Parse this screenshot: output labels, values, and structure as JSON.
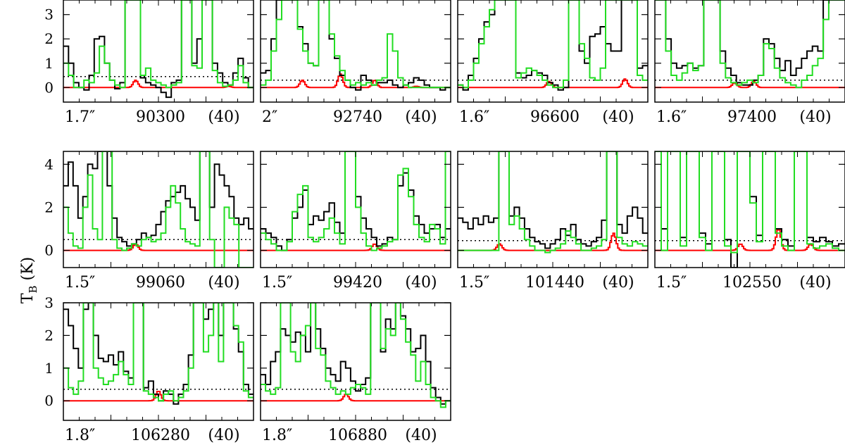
{
  "chart_data": {
    "type": "line",
    "ylabel": "T",
    "ylabel_sub": "B",
    "ylabel_unit": " (K)",
    "colors": {
      "observed": "#000000",
      "model_total": "#22dd22",
      "model_species": "#ff0000",
      "threshold": "#000000"
    },
    "panels": [
      {
        "res": "1.7″",
        "freq": "90300",
        "note": "(40)",
        "ylim": [
          -0.6,
          3.6
        ],
        "yticks": [
          0,
          1,
          2,
          3
        ],
        "threshold": 0.45,
        "red_peaks": [
          [
            0.38,
            0.3
          ],
          [
            0.87,
            0.05
          ]
        ],
        "black": [
          1.7,
          1.0,
          0.2,
          0.0,
          -0.1,
          0.5,
          2.0,
          2.1,
          1.0,
          0.3,
          -0.05,
          0.2,
          3.6,
          3.6,
          3.6,
          0.4,
          0.2,
          0.1,
          0.0,
          -0.2,
          -0.4,
          0.2,
          0.3,
          3.6,
          3.6,
          1.0,
          2.0,
          3.6,
          3.6,
          1.0,
          0.6,
          0.2,
          0.1,
          0.6,
          1.2,
          0.4,
          0.0
        ],
        "green": [
          1.0,
          0.5,
          0.0,
          0.0,
          0.3,
          0.2,
          0.6,
          1.7,
          1.0,
          0.3,
          0.1,
          0.0,
          3.6,
          3.6,
          3.6,
          0.5,
          0.8,
          0.3,
          0.2,
          0.1,
          0.0,
          0.1,
          0.2,
          3.6,
          3.6,
          0.9,
          0.8,
          3.6,
          3.6,
          0.7,
          0.2,
          0.05,
          0.1,
          0.3,
          0.9,
          0.2,
          0.0
        ]
      },
      {
        "res": "2″",
        "freq": "92740",
        "note": "(40)",
        "ylim": [
          -0.6,
          3.6
        ],
        "yticks": [
          0,
          1,
          2,
          3
        ],
        "threshold": 0.3,
        "red_peaks": [
          [
            0.22,
            0.3
          ],
          [
            0.42,
            0.55
          ],
          [
            0.6,
            0.3
          ],
          [
            0.82,
            0.05
          ]
        ],
        "black": [
          0.6,
          0.7,
          2.0,
          3.6,
          3.6,
          3.6,
          3.6,
          2.5,
          1.8,
          1.0,
          0.9,
          3.6,
          3.6,
          2.0,
          1.2,
          0.5,
          0.3,
          0.0,
          -0.1,
          0.5,
          0.3,
          0.1,
          0.2,
          0.2,
          0.3,
          0.1,
          0.0,
          0.1,
          0.2,
          0.4,
          0.3,
          0.1,
          0.0,
          0.0,
          -0.1,
          0.0
        ],
        "green": [
          0.1,
          0.3,
          1.5,
          2.8,
          3.6,
          3.6,
          3.6,
          2.4,
          1.5,
          1.0,
          0.9,
          3.6,
          3.6,
          2.2,
          1.3,
          0.7,
          0.3,
          0.1,
          0.2,
          0.1,
          0.2,
          0.1,
          0.3,
          0.4,
          2.2,
          1.5,
          0.4,
          0.1,
          0.0,
          0.0,
          0.0,
          0.0,
          0.0,
          0.0,
          0.0,
          0.0
        ]
      },
      {
        "res": "1.6″",
        "freq": "96600",
        "note": "(40)",
        "ylim": [
          -0.6,
          3.6
        ],
        "yticks": [
          0,
          1,
          2,
          3
        ],
        "threshold": 0.3,
        "red_peaks": [
          [
            0.48,
            0.25
          ],
          [
            0.88,
            0.35
          ]
        ],
        "black": [
          0.1,
          -0.1,
          0.5,
          1.2,
          2.0,
          2.7,
          3.0,
          3.6,
          3.6,
          3.6,
          3.6,
          0.6,
          0.4,
          0.5,
          0.7,
          0.6,
          0.5,
          0.2,
          0.1,
          -0.1,
          0.0,
          3.6,
          3.6,
          1.5,
          1.0,
          2.1,
          2.2,
          2.5,
          1.8,
          1.5,
          1.5,
          3.6,
          3.6,
          3.6,
          0.8,
          0.9
        ],
        "green": [
          0.1,
          0.0,
          0.3,
          1.0,
          1.8,
          2.5,
          3.2,
          3.6,
          3.6,
          3.6,
          3.6,
          0.4,
          0.6,
          0.8,
          0.7,
          0.5,
          0.3,
          0.1,
          0.0,
          0.0,
          0.3,
          3.6,
          3.6,
          1.8,
          1.2,
          0.4,
          0.3,
          0.8,
          3.6,
          3.6,
          3.6,
          3.6,
          3.6,
          3.6,
          0.5,
          0.3
        ]
      },
      {
        "res": "1.6″",
        "freq": "97400",
        "note": "(40)",
        "ylim": [
          -0.6,
          3.6
        ],
        "yticks": [
          0,
          1,
          2,
          3
        ],
        "threshold": 0.3,
        "red_peaks": [
          [
            0.42,
            0.2
          ],
          [
            0.52,
            0.25
          ]
        ],
        "black": [
          3.6,
          3.6,
          2.0,
          1.0,
          0.8,
          0.9,
          1.0,
          0.8,
          0.9,
          3.6,
          3.6,
          3.6,
          1.5,
          0.8,
          0.5,
          0.2,
          0.1,
          0.1,
          0.3,
          0.5,
          2.0,
          1.8,
          1.2,
          0.7,
          1.1,
          0.5,
          0.8,
          1.2,
          1.5,
          1.7,
          1.5,
          3.6,
          3.6,
          3.6,
          3.6
        ],
        "green": [
          3.6,
          3.6,
          1.5,
          0.5,
          0.3,
          0.6,
          1.0,
          0.7,
          0.9,
          3.6,
          3.6,
          3.6,
          1.0,
          0.4,
          0.2,
          0.1,
          0.2,
          0.3,
          0.2,
          0.5,
          1.8,
          1.6,
          0.8,
          0.4,
          0.2,
          0.1,
          0.0,
          0.3,
          0.5,
          0.9,
          1.2,
          2.8,
          3.6,
          3.6,
          3.6
        ]
      },
      {
        "res": "1.5″",
        "freq": "99060",
        "note": "(40)",
        "ylim": [
          -0.8,
          4.6
        ],
        "yticks": [
          0,
          2,
          4
        ],
        "threshold": 0.5,
        "red_peaks": [
          [
            0.38,
            0.3
          ]
        ],
        "black": [
          3.0,
          4.1,
          3.0,
          1.5,
          2.5,
          4.0,
          3.8,
          4.6,
          4.6,
          3.0,
          1.5,
          0.6,
          0.4,
          0.2,
          0.3,
          0.5,
          0.8,
          0.6,
          0.7,
          1.2,
          1.8,
          2.3,
          2.5,
          2.7,
          3.0,
          2.4,
          2.0,
          1.4,
          4.6,
          4.6,
          2.0,
          4.0,
          3.5,
          3.0,
          2.5,
          1.5,
          1.2,
          1.5,
          1.0
        ],
        "green": [
          2.0,
          0.8,
          0.2,
          0.1,
          2.0,
          3.5,
          1.0,
          0.5,
          4.6,
          4.6,
          0.5,
          0.1,
          0.0,
          0.1,
          0.3,
          0.2,
          0.5,
          0.6,
          0.4,
          0.5,
          0.8,
          2.0,
          3.0,
          2.2,
          1.0,
          0.4,
          0.3,
          0.2,
          4.6,
          4.6,
          0.5,
          -0.8,
          -0.8,
          2.0,
          1.5,
          1.2,
          -0.8,
          -0.8,
          -0.8
        ]
      },
      {
        "res": "1.5″",
        "freq": "99420",
        "note": "(40)",
        "ylim": [
          -0.8,
          4.6
        ],
        "yticks": [
          0,
          2,
          4
        ],
        "threshold": 0.5,
        "red_peaks": [
          [
            0.6,
            0.3
          ]
        ],
        "black": [
          1.0,
          0.8,
          0.6,
          0.2,
          0.0,
          0.5,
          1.5,
          2.0,
          2.8,
          1.2,
          1.6,
          1.4,
          1.8,
          2.2,
          1.3,
          0.8,
          4.6,
          4.6,
          2.5,
          1.5,
          1.0,
          0.6,
          0.2,
          0.3,
          0.6,
          0.5,
          3.0,
          3.6,
          2.8,
          1.6,
          1.2,
          0.8,
          1.0,
          1.2,
          0.6,
          1.0
        ],
        "green": [
          0.8,
          0.5,
          0.3,
          0.0,
          0.0,
          0.4,
          1.8,
          2.6,
          3.0,
          0.6,
          0.4,
          0.6,
          1.0,
          1.5,
          0.8,
          0.3,
          4.6,
          4.6,
          2.0,
          0.8,
          0.2,
          0.0,
          0.1,
          0.2,
          0.4,
          0.5,
          3.5,
          3.8,
          2.5,
          1.2,
          0.6,
          0.4,
          1.2,
          1.0,
          0.3,
          4.6
        ]
      },
      {
        "res": "1.5″",
        "freq": "101440",
        "note": "(40)",
        "ylim": [
          -0.8,
          4.6
        ],
        "yticks": [
          0,
          2,
          4
        ],
        "threshold": 0.45,
        "red_peaks": [
          [
            0.22,
            0.3
          ],
          [
            0.82,
            0.8
          ]
        ],
        "black": [
          1.5,
          1.3,
          1.0,
          1.5,
          1.2,
          1.6,
          1.3,
          1.5,
          4.6,
          4.6,
          1.6,
          2.0,
          1.5,
          1.0,
          0.6,
          0.4,
          0.3,
          0.1,
          0.3,
          0.5,
          1.0,
          0.7,
          1.2,
          0.5,
          0.3,
          0.2,
          0.4,
          0.6,
          1.4,
          4.6,
          4.6,
          1.2,
          0.8,
          1.6,
          2.0,
          1.5,
          0.8
        ],
        "green": [
          0.0,
          0.0,
          0.0,
          0.0,
          0.0,
          0.0,
          0.0,
          0.0,
          4.6,
          4.6,
          1.2,
          1.6,
          1.0,
          0.5,
          0.2,
          0.0,
          0.0,
          -0.1,
          0.0,
          0.1,
          0.3,
          0.9,
          0.6,
          0.3,
          0.0,
          0.0,
          0.1,
          0.2,
          0.5,
          4.6,
          4.6,
          0.6,
          0.3,
          0.2,
          0.4,
          0.3,
          0.2
        ]
      },
      {
        "res": "1.5″",
        "freq": "102550",
        "note": "(40)",
        "ylim": [
          -0.8,
          4.6
        ],
        "yticks": [
          0,
          2,
          4
        ],
        "threshold": 0.45,
        "red_peaks": [
          [
            0.45,
            0.3
          ],
          [
            0.65,
            1.0
          ],
          [
            0.82,
            0.3
          ]
        ],
        "black": [
          4.6,
          1.0,
          4.6,
          4.6,
          0.6,
          4.6,
          4.6,
          0.8,
          0.3,
          4.6,
          4.6,
          0.5,
          -0.8,
          4.6,
          4.6,
          2.5,
          0.7,
          4.6,
          4.6,
          1.0,
          0.5,
          0.2,
          4.6,
          4.6,
          0.6,
          0.4,
          0.6,
          0.4,
          0.2,
          0.3
        ],
        "green": [
          4.6,
          0.0,
          4.6,
          4.6,
          0.2,
          4.6,
          4.6,
          0.6,
          0.0,
          4.6,
          4.6,
          0.2,
          -0.1,
          4.6,
          4.6,
          2.2,
          0.4,
          4.6,
          4.6,
          0.8,
          0.2,
          0.0,
          4.6,
          4.6,
          0.3,
          0.1,
          0.2,
          0.3,
          0.1,
          0.0
        ]
      },
      {
        "res": "1.8″",
        "freq": "106280",
        "note": "(40)",
        "ylim": [
          -0.6,
          3.0
        ],
        "yticks": [
          0,
          1,
          2,
          3
        ],
        "threshold": 0.35,
        "red_peaks": [
          [
            0.5,
            0.3
          ]
        ],
        "black": [
          2.8,
          2.3,
          1.6,
          1.0,
          2.8,
          3.0,
          2.0,
          1.3,
          1.2,
          1.4,
          1.1,
          1.5,
          0.9,
          0.7,
          3.0,
          3.0,
          0.4,
          0.6,
          0.2,
          0.0,
          0.3,
          0.2,
          -0.1,
          0.2,
          0.5,
          1.4,
          3.0,
          3.0,
          2.5,
          2.8,
          3.0,
          2.0,
          3.0,
          3.0,
          2.2,
          1.5,
          0.5,
          0.2
        ],
        "green": [
          1.0,
          0.4,
          0.2,
          0.6,
          3.0,
          3.0,
          1.0,
          0.7,
          0.5,
          0.6,
          0.8,
          1.2,
          0.8,
          0.5,
          3.0,
          3.0,
          0.3,
          0.2,
          0.1,
          0.0,
          0.2,
          0.3,
          0.0,
          0.1,
          0.3,
          1.0,
          3.0,
          3.0,
          1.5,
          2.0,
          3.0,
          1.2,
          3.0,
          3.0,
          2.3,
          1.8,
          0.3,
          0.1
        ]
      },
      {
        "res": "1.8″",
        "freq": "106880",
        "note": "(40)",
        "ylim": [
          -0.6,
          3.0
        ],
        "yticks": [
          0,
          1,
          2,
          3
        ],
        "threshold": 0.35,
        "red_peaks": [
          [
            0.45,
            0.2
          ]
        ],
        "black": [
          0.8,
          0.5,
          1.2,
          1.5,
          2.2,
          2.0,
          1.8,
          2.1,
          2.0,
          1.5,
          3.0,
          2.2,
          1.6,
          1.0,
          0.8,
          0.6,
          1.2,
          1.0,
          0.6,
          0.3,
          0.5,
          0.7,
          3.0,
          3.0,
          1.5,
          2.5,
          2.2,
          3.0,
          2.6,
          2.2,
          1.5,
          1.6,
          2.0,
          1.2,
          0.4,
          0.1,
          -0.1,
          0.0
        ],
        "green": [
          0.5,
          0.3,
          0.2,
          0.4,
          3.0,
          3.0,
          1.5,
          1.2,
          2.0,
          2.3,
          3.0,
          1.6,
          1.4,
          0.6,
          0.4,
          0.2,
          0.3,
          0.2,
          0.4,
          0.5,
          0.4,
          0.2,
          3.0,
          3.0,
          1.6,
          2.2,
          2.0,
          3.0,
          2.5,
          1.8,
          1.4,
          0.6,
          1.2,
          0.5,
          0.1,
          0.0,
          -0.2,
          0.0
        ]
      }
    ]
  }
}
